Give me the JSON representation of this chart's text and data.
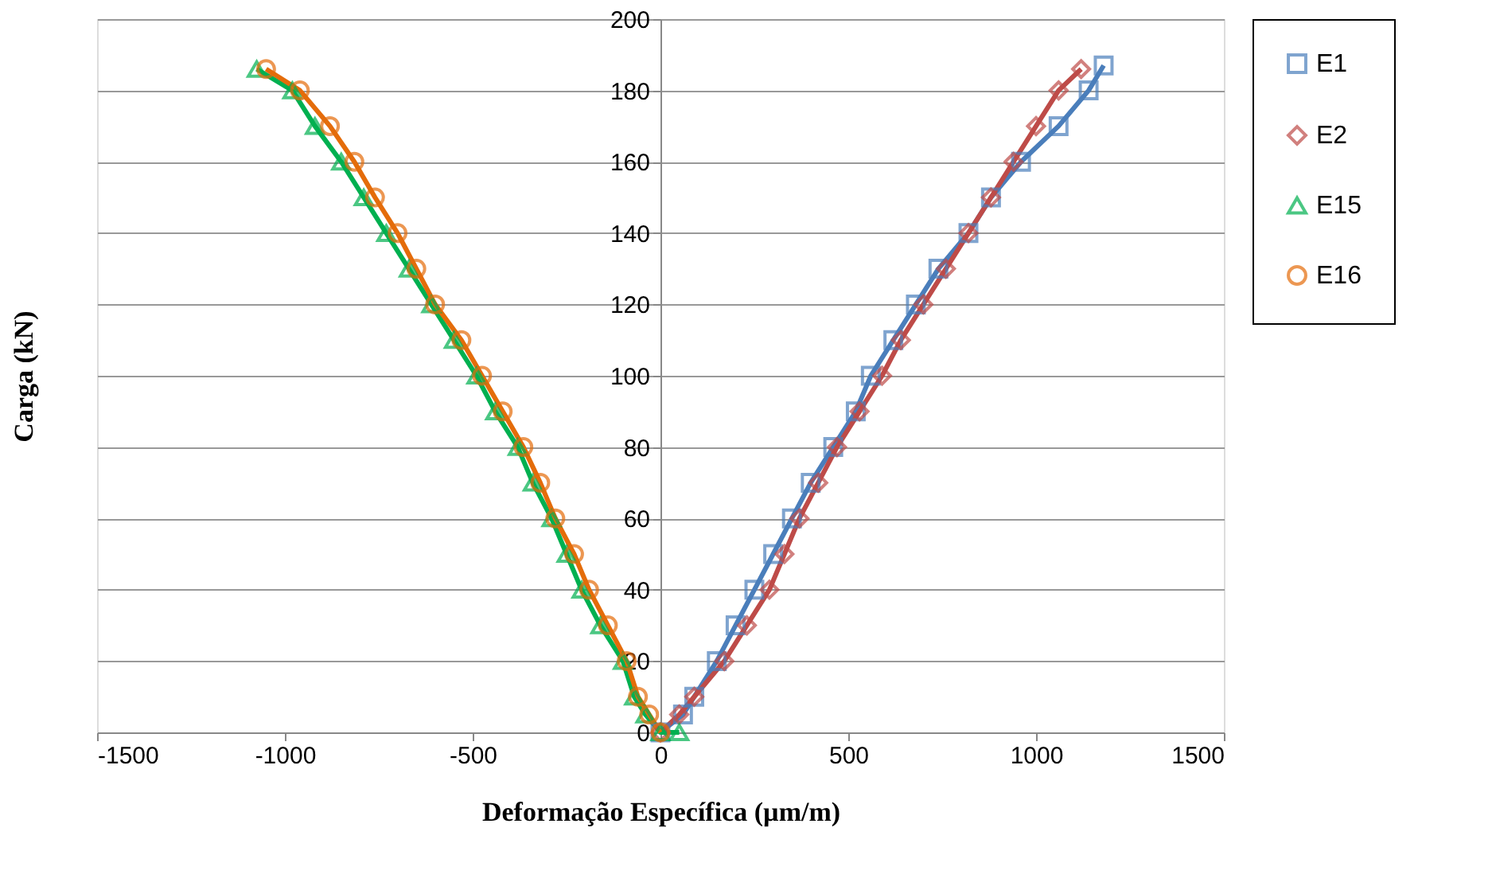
{
  "chart_data": {
    "type": "line",
    "xlabel": "Deformação  Específica (µm/m)",
    "ylabel": "Carga (kN)",
    "xlim": [
      -1500,
      1500
    ],
    "xticks": [
      -1500,
      -1000,
      -500,
      0,
      500,
      1000,
      1500
    ],
    "ylim": [
      0,
      200
    ],
    "yticks": [
      0,
      20,
      40,
      60,
      80,
      100,
      120,
      140,
      160,
      180,
      200
    ],
    "grid": "y",
    "legend": "right",
    "series": [
      {
        "name": "E1",
        "color": "#4a7ebb",
        "marker": "square",
        "x": [
          0,
          60,
          90,
          150,
          200,
          250,
          300,
          350,
          400,
          460,
          520,
          560,
          620,
          680,
          740,
          820,
          880,
          960,
          1060,
          1140,
          1180
        ],
        "values": [
          0,
          5,
          10,
          20,
          30,
          40,
          50,
          60,
          70,
          80,
          90,
          100,
          110,
          120,
          130,
          140,
          150,
          160,
          170,
          180,
          187
        ]
      },
      {
        "name": "E2",
        "color": "#be4b48",
        "marker": "diamond",
        "x": [
          0,
          50,
          90,
          170,
          230,
          290,
          330,
          370,
          420,
          470,
          530,
          590,
          640,
          700,
          760,
          820,
          880,
          940,
          1000,
          1060,
          1120
        ],
        "values": [
          0,
          5,
          10,
          20,
          30,
          40,
          50,
          60,
          70,
          80,
          90,
          100,
          110,
          120,
          130,
          140,
          150,
          160,
          170,
          180,
          186
        ]
      },
      {
        "name": "E15",
        "color": "#00b050",
        "marker": "triangle",
        "x": [
          50,
          0,
          -40,
          -70,
          -100,
          -160,
          -210,
          -250,
          -290,
          -340,
          -380,
          -440,
          -490,
          -550,
          -610,
          -670,
          -730,
          -790,
          -850,
          -920,
          -980,
          -1075
        ],
        "values": [
          0,
          0,
          5,
          10,
          20,
          30,
          40,
          50,
          60,
          70,
          80,
          90,
          100,
          110,
          120,
          130,
          140,
          150,
          160,
          170,
          180,
          186
        ]
      },
      {
        "name": "E16",
        "color": "#e46c0a",
        "marker": "circle",
        "x": [
          0,
          -30,
          -60,
          -90,
          -140,
          -190,
          -230,
          -280,
          -320,
          -365,
          -420,
          -475,
          -530,
          -600,
          -650,
          -700,
          -760,
          -815,
          -880,
          -960,
          -1050
        ],
        "values": [
          0,
          5,
          10,
          20,
          30,
          40,
          50,
          60,
          70,
          80,
          90,
          100,
          110,
          120,
          130,
          140,
          150,
          160,
          170,
          180,
          186
        ]
      }
    ]
  }
}
